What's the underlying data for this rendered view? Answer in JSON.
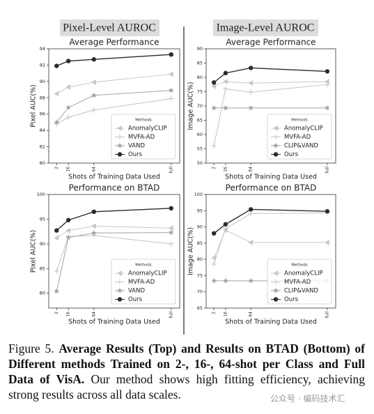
{
  "headers": [
    "Pixel-Level AUROC",
    "Image-Level AUROC"
  ],
  "chart_data": [
    {
      "type": "line",
      "title": "Average Performance",
      "xlabel": "Shots of Training Data Used",
      "ylabel": "Pixel AUC(%)",
      "categories": [
        "2",
        "16",
        "64",
        "full"
      ],
      "ylim": [
        80,
        94
      ],
      "yticks": [
        80,
        82,
        84,
        86,
        88,
        90,
        92,
        94
      ],
      "legend": "lower right",
      "legend_title": "Methods",
      "series": [
        {
          "name": "AnomalyCLIP",
          "color": "#c9c9bf",
          "values": [
            88.5,
            89.3,
            89.9,
            90.9
          ]
        },
        {
          "name": "MVFA-AD",
          "color": "#c4c4c4",
          "values": [
            84.8,
            85.6,
            86.5,
            87.9
          ]
        },
        {
          "name": "VAND",
          "color": "#a3a3a3",
          "values": [
            85.0,
            86.8,
            88.3,
            88.9
          ]
        },
        {
          "name": "Ours",
          "color": "#2b2b2b",
          "values": [
            91.9,
            92.5,
            92.7,
            93.3
          ]
        }
      ]
    },
    {
      "type": "line",
      "title": "Average Performance",
      "xlabel": "Shots of Training Data Used",
      "ylabel": "Image AUC(%)",
      "categories": [
        "2",
        "16",
        "64",
        "full"
      ],
      "ylim": [
        50,
        90
      ],
      "yticks": [
        50,
        55,
        60,
        65,
        70,
        75,
        80,
        85,
        90
      ],
      "legend": "lower right",
      "legend_title": "Methods",
      "series": [
        {
          "name": "AnomalyCLIP",
          "color": "#c9c9bf",
          "values": [
            76.9,
            78.5,
            78.0,
            78.5
          ]
        },
        {
          "name": "MVFA-AD",
          "color": "#c4c4c4",
          "values": [
            56.0,
            76.0,
            74.8,
            77.5
          ]
        },
        {
          "name": "CLIP&VAND",
          "color": "#a3a3a3",
          "values": [
            69.3,
            69.3,
            69.3,
            69.3
          ]
        },
        {
          "name": "Ours",
          "color": "#2b2b2b",
          "values": [
            78.2,
            81.5,
            83.3,
            82.1
          ]
        }
      ]
    },
    {
      "type": "line",
      "title": "Performance on BTAD",
      "xlabel": "Shots of Training Data Used",
      "ylabel": "Pixel AUC(%)",
      "categories": [
        "2",
        "16",
        "64",
        "full"
      ],
      "ylim": [
        77,
        100
      ],
      "yticks": [
        80,
        85,
        90,
        95,
        100
      ],
      "legend": "lower right",
      "legend_title": "Methods",
      "series": [
        {
          "name": "AnomalyCLIP",
          "color": "#c9c9bf",
          "values": [
            91.2,
            92.7,
            93.6,
            93.2
          ]
        },
        {
          "name": "MVFA-AD",
          "color": "#c4c4c4",
          "values": [
            84.5,
            91.5,
            91.7,
            90.0
          ]
        },
        {
          "name": "VAND",
          "color": "#a3a3a3",
          "values": [
            80.4,
            91.3,
            92.2,
            92.3
          ]
        },
        {
          "name": "Ours",
          "color": "#2b2b2b",
          "values": [
            92.7,
            94.8,
            96.5,
            97.2
          ]
        }
      ]
    },
    {
      "type": "line",
      "title": "Performance on BTAD",
      "xlabel": "Shots of Training Data Used",
      "ylabel": "Image AUC(%)",
      "categories": [
        "2",
        "16",
        "64",
        "full"
      ],
      "ylim": [
        65,
        100
      ],
      "yticks": [
        65,
        70,
        75,
        80,
        85,
        90,
        95,
        100
      ],
      "legend": "lower right",
      "legend_title": "Methods",
      "series": [
        {
          "name": "AnomalyCLIP",
          "color": "#c9c9bf",
          "values": [
            80.5,
            89.0,
            85.2,
            85.2
          ]
        },
        {
          "name": "MVFA-AD",
          "color": "#c4c4c4",
          "values": [
            78.5,
            89.5,
            94.1,
            94.3
          ]
        },
        {
          "name": "CLIP&VAND",
          "color": "#a3a3a3",
          "values": [
            73.4,
            73.4,
            73.4,
            73.4
          ]
        },
        {
          "name": "Ours",
          "color": "#2b2b2b",
          "values": [
            88.0,
            90.8,
            95.4,
            94.8
          ]
        }
      ]
    }
  ],
  "caption": {
    "label": "Figure 5.",
    "bold": "Average Results (Top) and Results on BTAD (Bottom) of Different methods Trained on 2-, 16-, 64-shot per Class and Full Data of VisA.",
    "text": "Our method shows high fitting efficiency, achieving strong results across all data scales."
  },
  "watermark": "公众号 · 编码技术汇"
}
